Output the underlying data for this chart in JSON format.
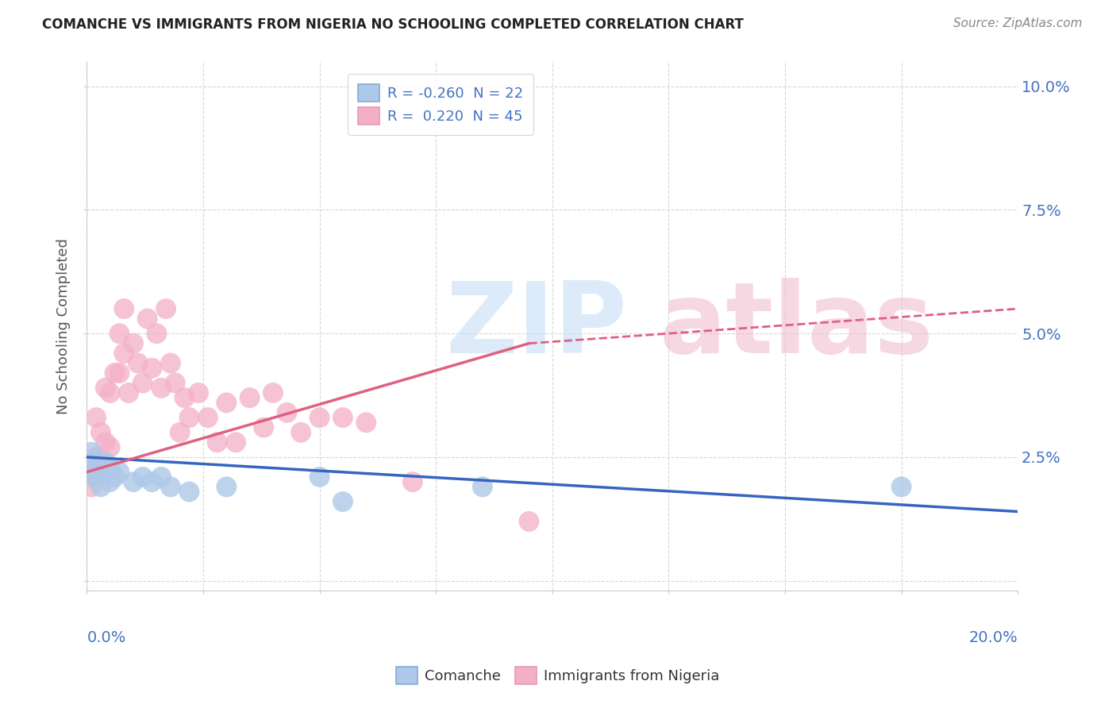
{
  "title": "COMANCHE VS IMMIGRANTS FROM NIGERIA NO SCHOOLING COMPLETED CORRELATION CHART",
  "source": "Source: ZipAtlas.com",
  "ylabel": "No Schooling Completed",
  "legend_blue_label": "R = -0.260  N = 22",
  "legend_pink_label": "R =  0.220  N = 45",
  "blue_color": "#adc8e8",
  "pink_color": "#f4afc8",
  "blue_line_color": "#3565c0",
  "pink_line_color": "#e06080",
  "comanche_x": [
    0.001,
    0.001,
    0.002,
    0.002,
    0.003,
    0.003,
    0.004,
    0.005,
    0.005,
    0.006,
    0.007,
    0.01,
    0.012,
    0.014,
    0.016,
    0.018,
    0.022,
    0.03,
    0.05,
    0.055,
    0.085,
    0.175
  ],
  "comanche_y": [
    0.026,
    0.022,
    0.024,
    0.021,
    0.023,
    0.019,
    0.024,
    0.02,
    0.023,
    0.021,
    0.022,
    0.02,
    0.021,
    0.02,
    0.021,
    0.019,
    0.018,
    0.019,
    0.021,
    0.016,
    0.019,
    0.019
  ],
  "nigeria_x": [
    0.001,
    0.001,
    0.001,
    0.002,
    0.002,
    0.003,
    0.003,
    0.004,
    0.004,
    0.005,
    0.005,
    0.006,
    0.007,
    0.007,
    0.008,
    0.008,
    0.009,
    0.01,
    0.011,
    0.012,
    0.013,
    0.014,
    0.015,
    0.016,
    0.017,
    0.018,
    0.019,
    0.02,
    0.021,
    0.022,
    0.024,
    0.026,
    0.028,
    0.03,
    0.032,
    0.035,
    0.038,
    0.04,
    0.043,
    0.046,
    0.05,
    0.055,
    0.06,
    0.07,
    0.095
  ],
  "nigeria_y": [
    0.024,
    0.021,
    0.019,
    0.033,
    0.025,
    0.03,
    0.024,
    0.039,
    0.028,
    0.038,
    0.027,
    0.042,
    0.05,
    0.042,
    0.055,
    0.046,
    0.038,
    0.048,
    0.044,
    0.04,
    0.053,
    0.043,
    0.05,
    0.039,
    0.055,
    0.044,
    0.04,
    0.03,
    0.037,
    0.033,
    0.038,
    0.033,
    0.028,
    0.036,
    0.028,
    0.037,
    0.031,
    0.038,
    0.034,
    0.03,
    0.033,
    0.033,
    0.032,
    0.02,
    0.012
  ],
  "xlim": [
    0.0,
    0.2
  ],
  "ylim": [
    -0.002,
    0.105
  ],
  "blue_trend": [
    0.0,
    0.2,
    0.025,
    0.014
  ],
  "pink_trend_solid": [
    0.0,
    0.095,
    0.022,
    0.048
  ],
  "pink_trend_dashed": [
    0.095,
    0.2,
    0.048,
    0.055
  ],
  "background_color": "#ffffff",
  "grid_color": "#d8d8d8"
}
